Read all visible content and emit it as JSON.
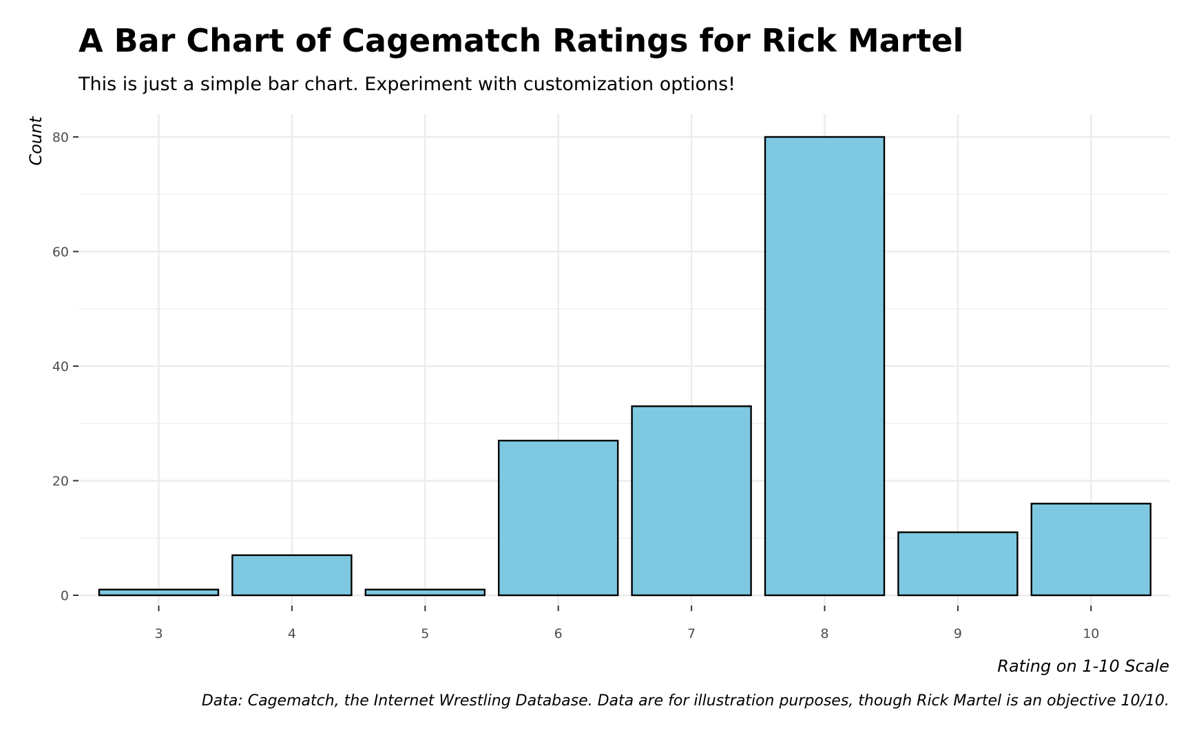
{
  "title": "A Bar Chart of Cagematch Ratings for Rick Martel",
  "subtitle": "This is just a simple bar chart. Experiment with customization options!",
  "caption": "Data: Cagematch, the Internet Wrestling Database. Data are for illustration purposes, though Rick Martel is an objective 10/10.",
  "chart_data": {
    "type": "bar",
    "title": "A Bar Chart of Cagematch Ratings for Rick Martel",
    "subtitle": "This is just a simple bar chart. Experiment with customization options!",
    "xlabel": "Rating on 1-10 Scale",
    "ylabel": "Count",
    "categories": [
      "3",
      "4",
      "5",
      "6",
      "7",
      "8",
      "9",
      "10"
    ],
    "values": [
      1,
      7,
      1,
      27,
      33,
      80,
      11,
      16
    ],
    "ylim": [
      0,
      84
    ],
    "yticks": [
      0,
      20,
      40,
      60,
      80
    ],
    "grid": true,
    "colors": {
      "bar_fill": "#7ec9e1",
      "bar_stroke": "#000000",
      "grid": "#ebebeb",
      "tick_text": "#4d4d4d"
    }
  }
}
